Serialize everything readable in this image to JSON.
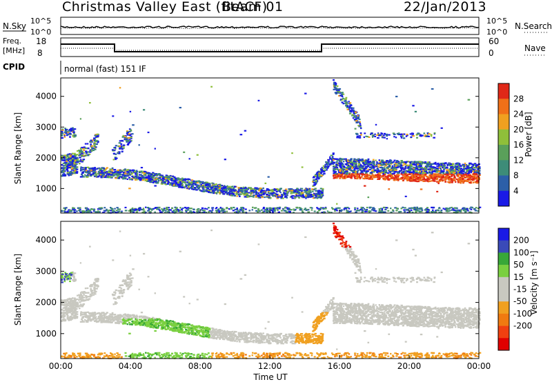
{
  "header": {
    "title": "Christmas Valley East (fitACF)",
    "beam": "Beam 01",
    "date": "22/Jan/2013"
  },
  "noise_panel": {
    "left_label": "N.Sky",
    "left_ticks": [
      "10^5",
      "10^0"
    ],
    "right_label": "N.Search",
    "right_ticks": [
      "10^5",
      "10^0"
    ]
  },
  "freq_panel": {
    "left_label_1": "Freq.",
    "left_label_2": "[MHz]",
    "left_ticks": [
      "18",
      "8"
    ],
    "right_label": "Nave",
    "right_ticks": [
      "60",
      "0"
    ]
  },
  "cpid_panel": {
    "label": "CPID",
    "text": "normal (fast) 151 IF"
  },
  "colors": {
    "power_scale": [
      "#1a1ae6",
      "#2c5fa8",
      "#3d8c78",
      "#5aa05a",
      "#8fbf3a",
      "#f0a020",
      "#f07018",
      "#e02818"
    ],
    "velocity_scale": [
      "#1a1ae6",
      "#3a4ab8",
      "#38a838",
      "#7ad040",
      "#c8c8c0",
      "#c8c8c0",
      "#f0a020",
      "#f07a10",
      "#f04010",
      "#e00000"
    ]
  },
  "chart_data": [
    {
      "type": "heatmap",
      "title": "Power",
      "ylabel": "Slant Range [km]",
      "xlabel": "",
      "x_ticks": [
        "00:00",
        "04:00",
        "08:00",
        "12:00",
        "16:00",
        "20:00",
        "00:00"
      ],
      "y_ticks": [
        1000,
        2000,
        3000,
        4000
      ],
      "ylim": [
        200,
        4600
      ],
      "xlim_hours": [
        0,
        24
      ],
      "colorbar_label": "Power [dB]",
      "colorbar_ticks": [
        "4",
        "8",
        "12",
        "16",
        "20",
        "24",
        "28"
      ],
      "colorbar_range": [
        0,
        30
      ]
    },
    {
      "type": "heatmap",
      "title": "Velocity",
      "ylabel": "Slant Range [km]",
      "xlabel": "Time UT",
      "x_ticks": [
        "00:00",
        "04:00",
        "08:00",
        "12:00",
        "16:00",
        "20:00",
        "00:00"
      ],
      "y_ticks": [
        1000,
        2000,
        3000,
        4000
      ],
      "ylim": [
        200,
        4600
      ],
      "xlim_hours": [
        0,
        24
      ],
      "colorbar_label": "Velocity [m s⁻¹]",
      "colorbar_ticks": [
        "200",
        "100",
        "50",
        "15",
        "-15",
        "-50",
        "-100",
        "-200"
      ]
    }
  ]
}
